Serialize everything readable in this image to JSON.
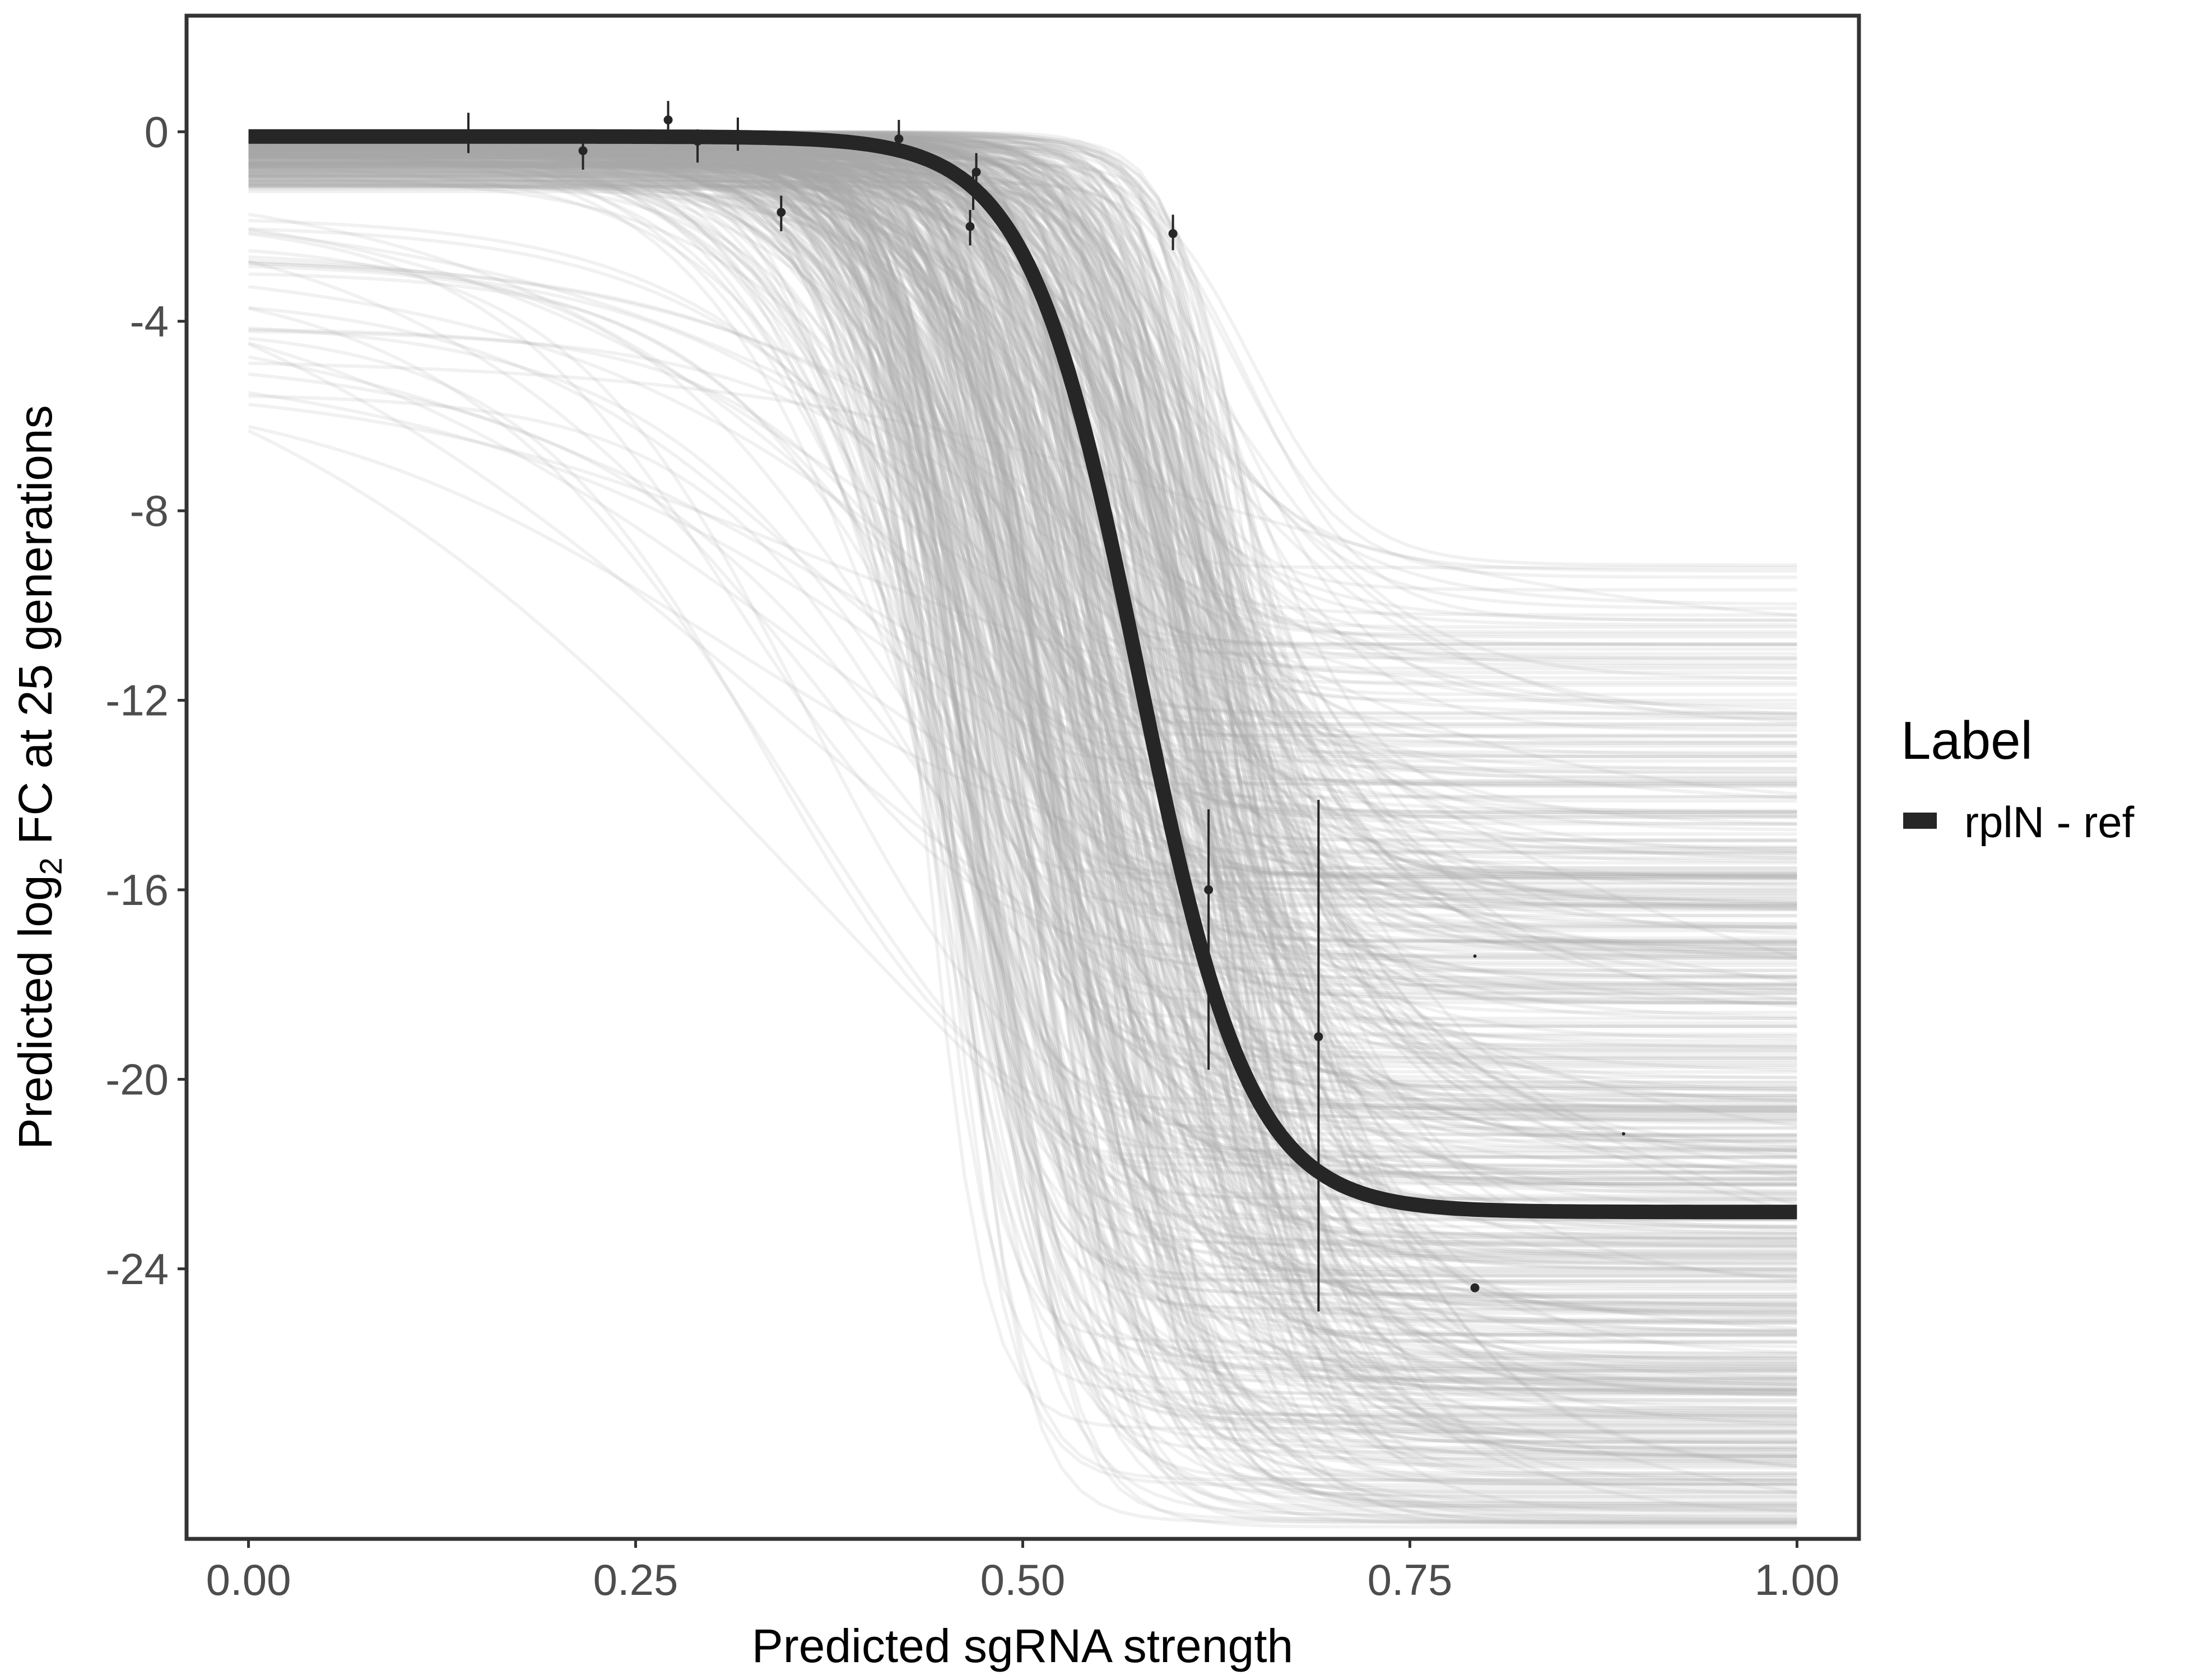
{
  "chart_data": {
    "type": "line",
    "xlabel": "Predicted sgRNA strength",
    "ylabel": {
      "prefix": "Predicted  log",
      "subscript": "2",
      "suffix": " FC at 25 generations"
    },
    "xlim": [
      -0.04,
      1.04
    ],
    "ylim": [
      -29.7,
      2.45
    ],
    "x_ticks": [
      0.0,
      0.25,
      0.5,
      0.75,
      1.0
    ],
    "x_tick_labels": [
      "0.00",
      "0.25",
      "0.50",
      "0.75",
      "1.00"
    ],
    "y_ticks": [
      0,
      -4,
      -8,
      -12,
      -16,
      -20,
      -24
    ],
    "y_tick_labels": [
      "0",
      "-4",
      "-8",
      "-12",
      "-16",
      "-20",
      "-24"
    ],
    "grid": false,
    "legend": {
      "title": "Label",
      "position": "right",
      "entries": [
        {
          "label": "rplN - ref",
          "color": "#262626"
        }
      ]
    },
    "fit_curve": {
      "name": "rplN - ref",
      "model": "logistic",
      "x_range": [
        0.0,
        1.0
      ],
      "top": -0.1,
      "bottom": -22.8,
      "midpoint": 0.575,
      "slope": 28,
      "color": "#262626"
    },
    "posterior_curves": {
      "count": 600,
      "x_range": [
        0.0,
        1.0
      ],
      "color": "#a6a6a6",
      "opacity": 0.16,
      "seed": 20240611
    },
    "points": [
      {
        "x": 0.142,
        "y": -0.05,
        "ymin": -0.45,
        "ymax": 0.4
      },
      {
        "x": 0.216,
        "y": -0.4,
        "ymin": -0.8,
        "ymax": -0.05
      },
      {
        "x": 0.271,
        "y": 0.25,
        "ymin": -0.05,
        "ymax": 0.65
      },
      {
        "x": 0.29,
        "y": -0.2,
        "ymin": -0.65,
        "ymax": 0.05
      },
      {
        "x": 0.316,
        "y": -0.05,
        "ymin": -0.4,
        "ymax": 0.3
      },
      {
        "x": 0.344,
        "y": -1.7,
        "ymin": -2.1,
        "ymax": -1.35
      },
      {
        "x": 0.42,
        "y": -0.15,
        "ymin": -0.5,
        "ymax": 0.25
      },
      {
        "x": 0.466,
        "y": -2.0,
        "ymin": -2.4,
        "ymax": -1.65
      },
      {
        "x": 0.468,
        "y": -1.25,
        "ymin": -1.65,
        "ymax": -0.85
      },
      {
        "x": 0.47,
        "y": -0.85,
        "ymin": -1.2,
        "ymax": -0.45
      },
      {
        "x": 0.597,
        "y": -2.15,
        "ymin": -2.5,
        "ymax": -1.75
      },
      {
        "x": 0.62,
        "y": -16.0,
        "ymin": -19.8,
        "ymax": -14.3
      },
      {
        "x": 0.691,
        "y": -19.1,
        "ymin": -24.9,
        "ymax": -14.1
      },
      {
        "x": 0.792,
        "y": -24.4,
        "ymin": -24.4,
        "ymax": -24.4
      },
      {
        "x": 0.792,
        "y": -17.4,
        "ymin": -17.4,
        "ymax": -17.4
      },
      {
        "x": 0.888,
        "y": -21.15,
        "ymin": -21.15,
        "ymax": -21.15
      }
    ]
  }
}
